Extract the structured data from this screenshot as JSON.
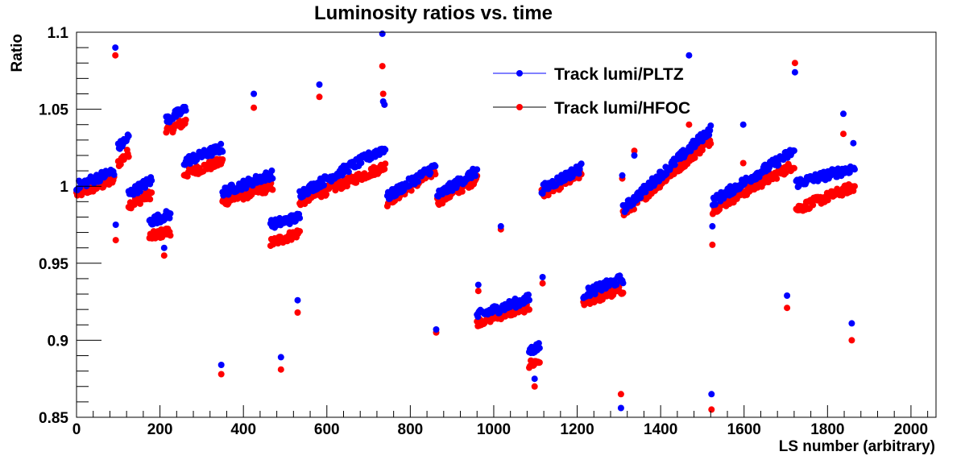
{
  "chart_data": {
    "type": "scatter",
    "title": "Luminosity ratios vs. time",
    "xlabel": "LS number (arbitrary)",
    "ylabel": "Ratio",
    "xlim": [
      0,
      2060
    ],
    "ylim": [
      0.85,
      1.1
    ],
    "x_ticks": [
      0,
      200,
      400,
      600,
      800,
      1000,
      1200,
      1400,
      1600,
      1800,
      2000
    ],
    "y_ticks": [
      0.85,
      0.9,
      0.95,
      1,
      1.05,
      1.1
    ],
    "x_tick_labels": [
      "0",
      "200",
      "400",
      "600",
      "800",
      "1000",
      "1200",
      "1400",
      "1600",
      "1800",
      "2000"
    ],
    "y_tick_labels": [
      "0.85",
      "0.9",
      "0.95",
      "1",
      "1.05",
      "1.1"
    ],
    "grid": false,
    "legend_position": "top-center",
    "colors": {
      "pltz": "#0000ff",
      "hfoc": "#ff0000",
      "frame": "#000000"
    },
    "segments": [
      {
        "x0": 0,
        "x1": 90,
        "pltz": [
          1.0,
          1.01
        ],
        "hfoc": [
          0.995,
          1.004
        ]
      },
      {
        "x0": 100,
        "x1": 125,
        "pltz": [
          1.025,
          1.032
        ],
        "hfoc": [
          1.015,
          1.022
        ]
      },
      {
        "x0": 125,
        "x1": 180,
        "pltz": [
          0.995,
          1.004
        ],
        "hfoc": [
          0.988,
          0.995
        ]
      },
      {
        "x0": 175,
        "x1": 225,
        "pltz": [
          0.977,
          0.982
        ],
        "hfoc": [
          0.967,
          0.971
        ]
      },
      {
        "x0": 215,
        "x1": 262,
        "pltz": [
          1.043,
          1.05
        ],
        "hfoc": [
          1.036,
          1.042
        ]
      },
      {
        "x0": 258,
        "x1": 350,
        "pltz": [
          1.016,
          1.025
        ],
        "hfoc": [
          1.008,
          1.016
        ]
      },
      {
        "x0": 350,
        "x1": 470,
        "pltz": [
          0.996,
          1.008
        ],
        "hfoc": [
          0.99,
          1.0
        ]
      },
      {
        "x0": 465,
        "x1": 535,
        "pltz": [
          0.975,
          0.98
        ],
        "hfoc": [
          0.963,
          0.97
        ]
      },
      {
        "x0": 535,
        "x1": 740,
        "pltz": [
          0.995,
          1.025
        ],
        "hfoc": [
          0.99,
          1.013
        ]
      },
      {
        "x0": 745,
        "x1": 860,
        "pltz": [
          0.993,
          1.013
        ],
        "hfoc": [
          0.99,
          1.01
        ]
      },
      {
        "x0": 865,
        "x1": 960,
        "pltz": [
          0.994,
          1.01
        ],
        "hfoc": [
          0.99,
          1.005
        ]
      },
      {
        "x0": 960,
        "x1": 1085,
        "pltz": [
          0.916,
          0.927
        ],
        "hfoc": [
          0.912,
          0.922
        ]
      },
      {
        "x0": 1085,
        "x1": 1110,
        "pltz": [
          0.893,
          0.896
        ],
        "hfoc": [
          0.884,
          0.887
        ]
      },
      {
        "x0": 1115,
        "x1": 1210,
        "pltz": [
          0.998,
          1.012
        ],
        "hfoc": [
          0.995,
          1.008
        ]
      },
      {
        "x0": 1215,
        "x1": 1310,
        "pltz": [
          0.93,
          0.94
        ],
        "hfoc": [
          0.925,
          0.933
        ]
      },
      {
        "x0": 1310,
        "x1": 1520,
        "pltz": [
          0.985,
          1.037
        ],
        "hfoc": [
          0.982,
          1.03
        ]
      },
      {
        "x0": 1525,
        "x1": 1720,
        "pltz": [
          0.99,
          1.023
        ],
        "hfoc": [
          0.985,
          1.014
        ]
      },
      {
        "x0": 1725,
        "x1": 1865,
        "pltz": [
          1.002,
          1.012
        ],
        "hfoc": [
          0.985,
          1.0
        ]
      }
    ],
    "outliers": [
      {
        "x": 93,
        "pltz": 1.09,
        "hfoc": 1.085
      },
      {
        "x": 94,
        "pltz": 0.975,
        "hfoc": 0.965
      },
      {
        "x": 210,
        "pltz": 0.96,
        "hfoc": 0.955
      },
      {
        "x": 347,
        "pltz": 0.884,
        "hfoc": 0.878
      },
      {
        "x": 425,
        "pltz": 1.06,
        "hfoc": 1.051
      },
      {
        "x": 490,
        "pltz": 0.889,
        "hfoc": 0.881
      },
      {
        "x": 530,
        "pltz": 0.926,
        "hfoc": 0.918
      },
      {
        "x": 582,
        "pltz": 1.066,
        "hfoc": 1.058
      },
      {
        "x": 733,
        "pltz": 1.099,
        "hfoc": 1.078
      },
      {
        "x": 735,
        "pltz": 1.055,
        "hfoc": 1.06
      },
      {
        "x": 738,
        "pltz": 1.053,
        "hfoc": 1.053
      },
      {
        "x": 862,
        "pltz": 0.907,
        "hfoc": 0.905
      },
      {
        "x": 963,
        "pltz": 0.936,
        "hfoc": 0.932
      },
      {
        "x": 1017,
        "pltz": 0.974,
        "hfoc": 0.972
      },
      {
        "x": 1098,
        "pltz": 0.875,
        "hfoc": 0.87
      },
      {
        "x": 1117,
        "pltz": 0.941,
        "hfoc": 0.937
      },
      {
        "x": 1305,
        "pltz": 0.856,
        "hfoc": 0.865
      },
      {
        "x": 1308,
        "pltz": 1.007,
        "hfoc": 1.005
      },
      {
        "x": 1337,
        "pltz": 1.02,
        "hfoc": 1.023
      },
      {
        "x": 1468,
        "pltz": 1.085,
        "hfoc": 1.04
      },
      {
        "x": 1522,
        "pltz": 0.865,
        "hfoc": 0.855
      },
      {
        "x": 1524,
        "pltz": 0.974,
        "hfoc": 0.962
      },
      {
        "x": 1598,
        "pltz": 1.04,
        "hfoc": 1.015
      },
      {
        "x": 1703,
        "pltz": 0.929,
        "hfoc": 0.921
      },
      {
        "x": 1722,
        "pltz": 1.074,
        "hfoc": 1.08
      },
      {
        "x": 1838,
        "pltz": 1.047,
        "hfoc": 1.034
      },
      {
        "x": 1858,
        "pltz": 0.911,
        "hfoc": 0.9
      },
      {
        "x": 1862,
        "pltz": 1.028,
        "hfoc": 0.997
      }
    ],
    "series": [
      {
        "name": "Track lumi/PLTZ",
        "key": "pltz"
      },
      {
        "name": "Track lumi/HFOC",
        "key": "hfoc"
      }
    ]
  }
}
